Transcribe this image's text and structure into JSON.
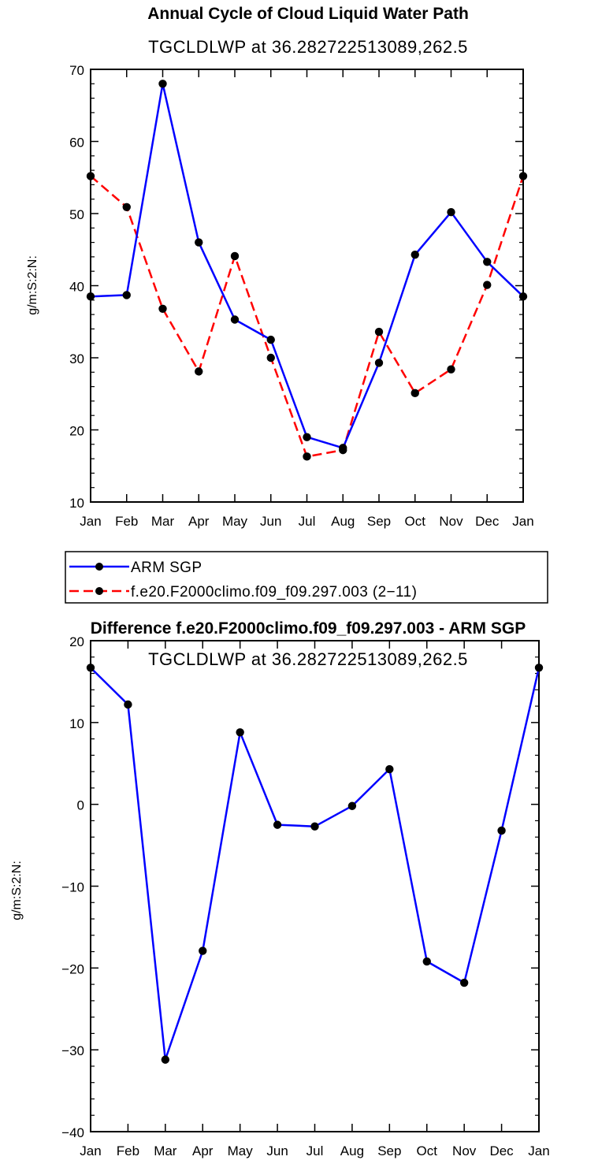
{
  "chart_data": [
    {
      "type": "line",
      "title": "Annual Cycle of Cloud Liquid Water Path",
      "subtitle": "TGCLDLWP at 36.282722513089,262.5",
      "ylabel": "g/m:S:2:N:",
      "xlabel": "",
      "categories": [
        "Jan",
        "Feb",
        "Mar",
        "Apr",
        "May",
        "Jun",
        "Jul",
        "Aug",
        "Sep",
        "Oct",
        "Nov",
        "Dec",
        "Jan"
      ],
      "ylim": [
        10,
        70
      ],
      "yticks": [
        10,
        20,
        30,
        40,
        50,
        60,
        70
      ],
      "ytick_labels": [
        "10",
        "20",
        "30",
        "40",
        "50",
        "60",
        "70"
      ],
      "series": [
        {
          "name": "ARM SGP",
          "color": "#0000ff",
          "dash": "solid",
          "values": [
            38.5,
            38.7,
            68.0,
            46.0,
            35.3,
            32.5,
            19.0,
            17.5,
            29.3,
            44.3,
            50.2,
            43.3,
            38.5
          ]
        },
        {
          "name": "f.e20.F2000climo.f09_f09.297.003 (2−11)",
          "color": "#ff0000",
          "dash": "dashed",
          "values": [
            55.2,
            50.9,
            36.8,
            28.1,
            44.1,
            30.0,
            16.3,
            17.2,
            33.6,
            25.1,
            28.4,
            40.1,
            55.2
          ]
        }
      ]
    },
    {
      "type": "line",
      "title": "Difference f.e20.F2000climo.f09_f09.297.003 - ARM SGP",
      "subtitle": "TGCLDLWP at 36.282722513089,262.5",
      "ylabel": "g/m:S:2:N:",
      "xlabel": "",
      "categories": [
        "Jan",
        "Feb",
        "Mar",
        "Apr",
        "May",
        "Jun",
        "Jul",
        "Aug",
        "Sep",
        "Oct",
        "Nov",
        "Dec",
        "Jan"
      ],
      "ylim": [
        -40,
        20
      ],
      "yticks": [
        -40,
        -30,
        -20,
        -10,
        0,
        10,
        20
      ],
      "ytick_labels": [
        "−40",
        "−30",
        "−20",
        "−10",
        "0",
        "10",
        "20"
      ],
      "series": [
        {
          "name": "Difference",
          "color": "#0000ff",
          "dash": "solid",
          "values": [
            16.7,
            12.2,
            -31.2,
            -17.9,
            8.8,
            -2.5,
            -2.7,
            -0.2,
            4.3,
            -19.2,
            -21.8,
            -3.2,
            16.7
          ]
        }
      ]
    }
  ],
  "legend": {
    "entries": [
      {
        "label": "ARM SGP",
        "color": "#0000ff",
        "dash": "solid"
      },
      {
        "label": "f.e20.F2000climo.f09_f09.297.003 (2−11)",
        "color": "#ff0000",
        "dash": "dashed"
      }
    ]
  }
}
